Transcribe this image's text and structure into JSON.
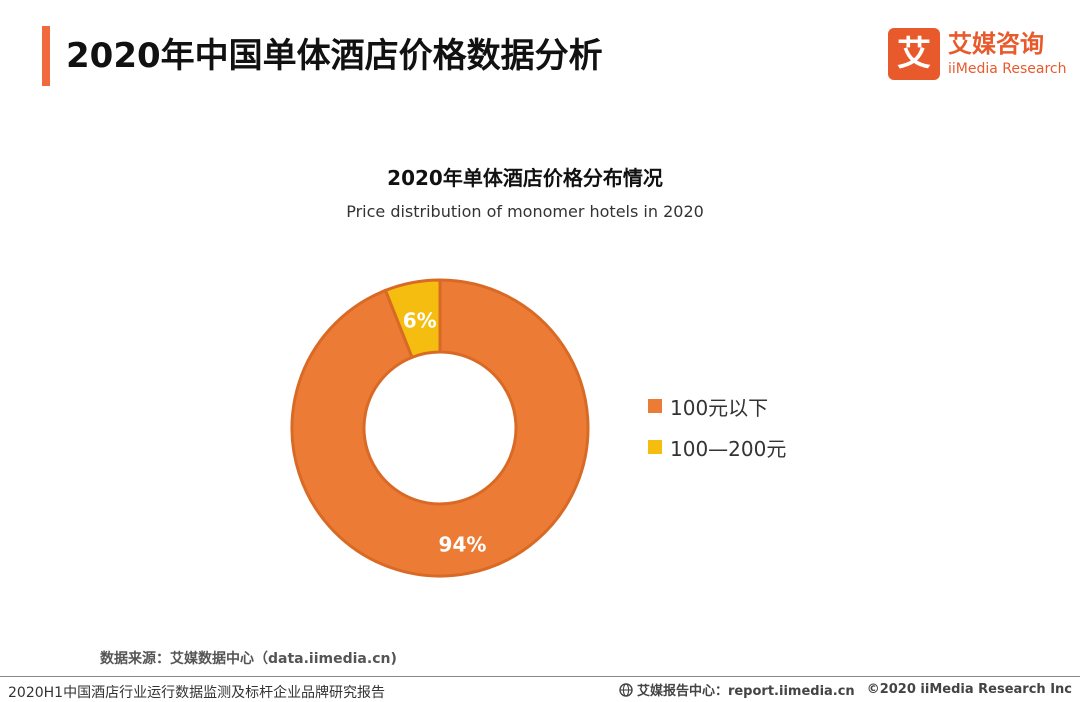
{
  "header": {
    "title": "2020年中国单体酒店价格数据分析",
    "logo_mark": "艾",
    "logo_cn": "艾媒咨询",
    "logo_en": "iiMedia Research"
  },
  "chart_data": {
    "type": "pie",
    "donut": true,
    "title": "2020年单体酒店价格分布情况",
    "subtitle": "Price distribution of monomer hotels in 2020",
    "categories": [
      "100元以下",
      "100—200元"
    ],
    "values": [
      94,
      6
    ],
    "labels": [
      "94%",
      "6%"
    ],
    "colors": [
      "#ec7c35",
      "#f5bd0f"
    ],
    "legend_position": "right"
  },
  "source": {
    "text": "数据来源：艾媒数据中心（data.iimedia.cn)"
  },
  "footer": {
    "report_name": "2020H1中国酒店行业运行数据监测及标杆企业品牌研究报告",
    "report_center": "艾媒报告中心：report.iimedia.cn",
    "copyright": "©2020  iiMedia Research  Inc"
  }
}
